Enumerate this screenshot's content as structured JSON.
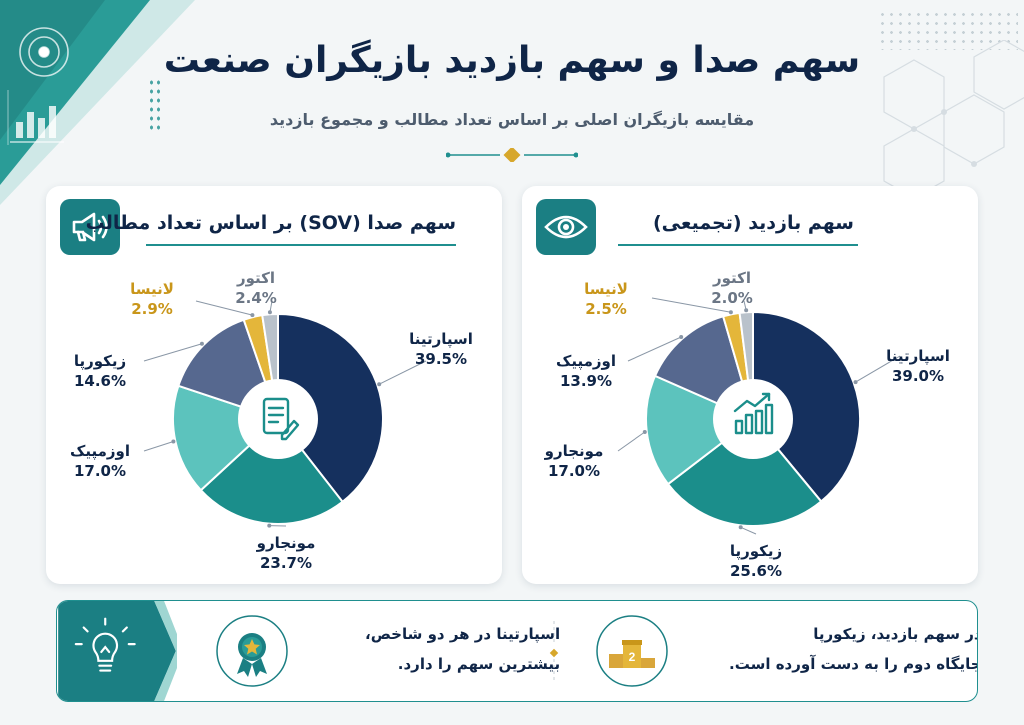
{
  "header": {
    "title": "سهم صدا و سهم بازدید بازیگران صنعت",
    "subtitle": "مقایسه بازیگران اصلی بر اساس تعداد مطالب و مجموع بازدید"
  },
  "colors": {
    "navy": "#15305e",
    "teal": "#1b8e8b",
    "light_teal": "#5cc3bd",
    "slate": "#56688f",
    "gold": "#e4b63a",
    "gray": "#b9c2cb",
    "label_gold": "#c9961a"
  },
  "chart_data": [
    {
      "type": "pie",
      "title": "سهم صدا (SOV) بر اساس تعداد مطالب",
      "icon": "megaphone-icon",
      "center_icon": "document-edit-icon",
      "unit": "%",
      "slices": [
        {
          "label": "اسپارتینا",
          "value": 39.5,
          "display": "39.5%",
          "color": "#15305e"
        },
        {
          "label": "مونجارو",
          "value": 23.7,
          "display": "23.7%",
          "color": "#1b8e8b"
        },
        {
          "label": "اوزمپیک",
          "value": 17.0,
          "display": "17.0%",
          "color": "#5cc3bd"
        },
        {
          "label": "زیکورپا",
          "value": 14.6,
          "display": "14.6%",
          "color": "#56688f"
        },
        {
          "label": "لانیسا",
          "value": 2.9,
          "display": "2.9%",
          "color": "#e4b63a"
        },
        {
          "label": "اکتور",
          "value": 2.4,
          "display": "2.4%",
          "color": "#b9c2cb"
        }
      ]
    },
    {
      "type": "pie",
      "title": "سهم بازدید (تجمیعی)",
      "icon": "eye-icon",
      "center_icon": "growth-chart-icon",
      "unit": "%",
      "slices": [
        {
          "label": "اسپارتینا",
          "value": 39.0,
          "display": "39.0%",
          "color": "#15305e"
        },
        {
          "label": "زیکورپا",
          "value": 25.6,
          "display": "25.6%",
          "color": "#1b8e8b"
        },
        {
          "label": "مونجارو",
          "value": 17.0,
          "display": "17.0%",
          "color": "#5cc3bd"
        },
        {
          "label": "اوزمپیک",
          "value": 13.9,
          "display": "13.9%",
          "color": "#56688f"
        },
        {
          "label": "لانیسا",
          "value": 2.5,
          "display": "2.5%",
          "color": "#e4b63a"
        },
        {
          "label": "اکتور",
          "value": 2.0,
          "display": "2.0%",
          "color": "#b9c2cb"
        }
      ]
    }
  ],
  "insights": {
    "bulb_icon": "lightbulb-icon",
    "note_1": {
      "icon": "medal-star-icon",
      "lines": [
        "اسپارتینا در هر دو شاخص،",
        "بیشترین سهم را دارد."
      ]
    },
    "note_2": {
      "icon": "podium-icon",
      "podium_number": "2",
      "lines": [
        "در سهم بازدید، زیکورپا",
        "جایگاه دوم را به دست آورده است."
      ]
    }
  }
}
